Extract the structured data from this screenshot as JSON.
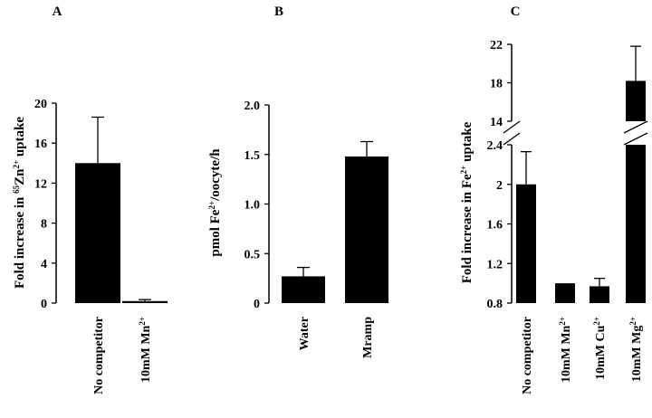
{
  "chart_data": [
    {
      "type": "bar",
      "panel": "A",
      "ylabel_parts": [
        "Fold increase in ",
        "65",
        "Zn",
        "2+",
        " uptake"
      ],
      "categories": [
        [
          "No competitor"
        ],
        [
          "10mM Mn",
          "2+"
        ]
      ],
      "values": [
        14.0,
        0.2
      ],
      "errors": [
        4.6,
        0.15
      ],
      "ylim": [
        0,
        20
      ],
      "yticks": [
        "0",
        "4",
        "8",
        "12",
        "16",
        "20"
      ]
    },
    {
      "type": "bar",
      "panel": "B",
      "ylabel_parts": [
        "pmol  Fe",
        "2+",
        "/oocyte/h"
      ],
      "categories": [
        [
          "Water"
        ],
        [
          "Mramp"
        ]
      ],
      "values": [
        0.27,
        1.48
      ],
      "errors": [
        0.09,
        0.15
      ],
      "ylim": [
        0,
        2.0
      ],
      "yticks": [
        "0",
        "0.5",
        "1.0",
        "1.5",
        "2.0"
      ]
    },
    {
      "type": "bar",
      "panel": "C",
      "ylabel_parts": [
        "Fold increase in Fe",
        "2+",
        " uptake"
      ],
      "categories": [
        [
          "No competitor"
        ],
        [
          "10mM Mn",
          "2+"
        ],
        [
          "10mM Cu",
          "2+"
        ],
        [
          "10mM Mg",
          "2+"
        ]
      ],
      "values": [
        2.0,
        1.0,
        0.97,
        18.2
      ],
      "errors": [
        0.33,
        0.0,
        0.08,
        3.6
      ],
      "axis_break": true,
      "lower_ylim": [
        0.8,
        2.4
      ],
      "upper_ylim": [
        14,
        22
      ],
      "lower_yticks": [
        "0.8",
        "1.2",
        "1.6",
        "2",
        "2.4"
      ],
      "upper_yticks": [
        "14",
        "18",
        "22"
      ]
    }
  ]
}
